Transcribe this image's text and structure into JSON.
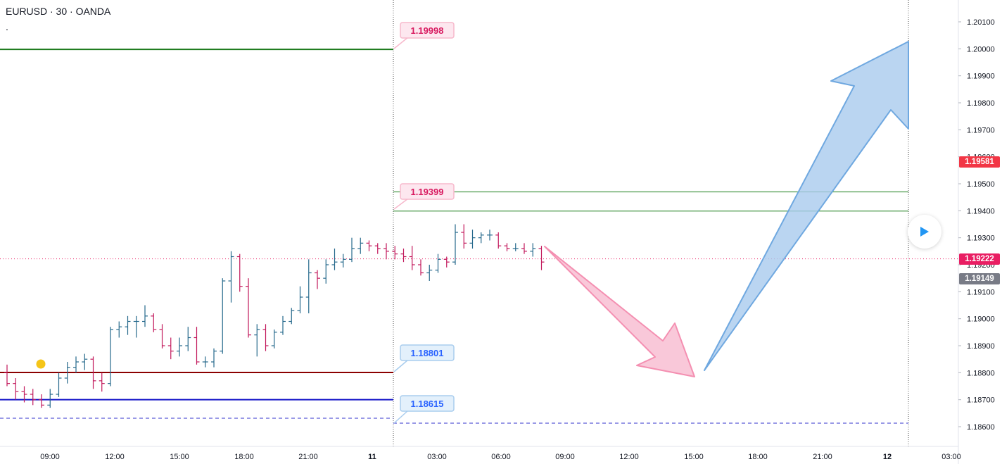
{
  "header": {
    "symbol_line": "EURUSD · 30 · OANDA",
    "sub_line": "."
  },
  "price_axis": {
    "ticks": [
      "1.20100",
      "1.20000",
      "1.19900",
      "1.19800",
      "1.19700",
      "1.19600",
      "1.19500",
      "1.19400",
      "1.19300",
      "1.19200",
      "1.19100",
      "1.19000",
      "1.18900",
      "1.18800",
      "1.18700",
      "1.18600"
    ],
    "labels": [
      {
        "name": "price-label-red",
        "text": "1.19581",
        "price": 1.19581,
        "bg": "#f23645",
        "fg": "#ffffff"
      },
      {
        "name": "price-label-pink",
        "text": "1.19222",
        "price": 1.19222,
        "bg": "#e91e63",
        "fg": "#ffffff"
      },
      {
        "name": "price-label-gray",
        "text": "1.19149",
        "price": 1.19149,
        "bg": "#787b86",
        "fg": "#ffffff"
      }
    ]
  },
  "time_axis": {
    "ticks": [
      "09:00",
      "12:00",
      "15:00",
      "18:00",
      "21:00",
      "11",
      "03:00",
      "06:00",
      "09:00",
      "12:00",
      "15:00",
      "18:00",
      "21:00",
      "12",
      "03:00"
    ]
  },
  "callouts": [
    {
      "text": "1.19998",
      "price": 1.19998,
      "color": "#d81b60",
      "bg": "#fde7ef",
      "border": "#f7b8cc"
    },
    {
      "text": "1.19399",
      "price": 1.19399,
      "color": "#d81b60",
      "bg": "#fde7ef",
      "border": "#f7b8cc"
    },
    {
      "text": "1.18801",
      "price": 1.18801,
      "color": "#2962ff",
      "bg": "#e3f0fb",
      "border": "#a9cdee"
    },
    {
      "text": "1.18615",
      "price": 1.18615,
      "color": "#2962ff",
      "bg": "#e3f0fb",
      "border": "#a9cdee"
    }
  ],
  "horizontal_lines": [
    {
      "name": "resistance-line-1.19998",
      "price": 1.19998,
      "color": "#1b7a1b"
    },
    {
      "name": "zone-line-upper",
      "price": 1.1947,
      "color": "#4c9a4c"
    },
    {
      "name": "zone-line-lower",
      "price": 1.19399,
      "color": "#4c9a4c"
    },
    {
      "name": "support-line-1.18801",
      "price": 1.18801,
      "color": "#8b0000"
    },
    {
      "name": "support-line-1.18700",
      "price": 1.187,
      "color": "#1414c8"
    },
    {
      "name": "dashed-line-1.18615",
      "price": 1.18615,
      "color": "#5c5cd6"
    }
  ],
  "current_price": 1.19222,
  "arrows": [
    {
      "name": "bearish-arrow",
      "fill": "#f7b6cc",
      "stroke": "#f48fb1"
    },
    {
      "name": "bullish-arrow",
      "fill": "#a9cbee",
      "stroke": "#6fa8e0"
    }
  ],
  "chart_data": {
    "type": "ohlc",
    "title": "EURUSD · 30 · OANDA",
    "ylim": [
      1.1855,
      1.2015
    ],
    "up_color": "#26698c",
    "down_color": "#c2185b",
    "bars": [
      [
        1.188,
        1.1883,
        1.1875,
        1.1876
      ],
      [
        1.1876,
        1.1878,
        1.187,
        1.1873
      ],
      [
        1.1873,
        1.1875,
        1.1869,
        1.1872
      ],
      [
        1.1872,
        1.1874,
        1.1868,
        1.187
      ],
      [
        1.187,
        1.1872,
        1.1867,
        1.1868
      ],
      [
        1.1868,
        1.1874,
        1.1867,
        1.1872
      ],
      [
        1.1872,
        1.188,
        1.1871,
        1.1878
      ],
      [
        1.1878,
        1.1884,
        1.1876,
        1.1882
      ],
      [
        1.1882,
        1.1886,
        1.188,
        1.1884
      ],
      [
        1.1884,
        1.1887,
        1.1881,
        1.1885
      ],
      [
        1.1885,
        1.1886,
        1.1874,
        1.1877
      ],
      [
        1.1877,
        1.188,
        1.1873,
        1.1876
      ],
      [
        1.1876,
        1.1897,
        1.1875,
        1.1896
      ],
      [
        1.1896,
        1.1899,
        1.1893,
        1.1897
      ],
      [
        1.1897,
        1.1901,
        1.1894,
        1.1899
      ],
      [
        1.1899,
        1.1901,
        1.1893,
        1.1899
      ],
      [
        1.1899,
        1.1905,
        1.1897,
        1.1901
      ],
      [
        1.1901,
        1.1902,
        1.1895,
        1.1896
      ],
      [
        1.1896,
        1.1898,
        1.1889,
        1.189
      ],
      [
        1.189,
        1.1893,
        1.1885,
        1.1888
      ],
      [
        1.1888,
        1.1893,
        1.1886,
        1.189
      ],
      [
        1.189,
        1.1897,
        1.1888,
        1.1893
      ],
      [
        1.1893,
        1.1897,
        1.1883,
        1.1884
      ],
      [
        1.1884,
        1.1886,
        1.1882,
        1.1884
      ],
      [
        1.1884,
        1.1889,
        1.1882,
        1.1888
      ],
      [
        1.1888,
        1.1915,
        1.1887,
        1.1914
      ],
      [
        1.1914,
        1.1925,
        1.1906,
        1.1923
      ],
      [
        1.1923,
        1.1924,
        1.191,
        1.1912
      ],
      [
        1.1912,
        1.1915,
        1.1893,
        1.1894
      ],
      [
        1.1894,
        1.1898,
        1.1886,
        1.1896
      ],
      [
        1.1896,
        1.1898,
        1.1888,
        1.189
      ],
      [
        1.189,
        1.1896,
        1.1889,
        1.1895
      ],
      [
        1.1895,
        1.1901,
        1.1894,
        1.1899
      ],
      [
        1.1899,
        1.1904,
        1.1898,
        1.1903
      ],
      [
        1.1903,
        1.1912,
        1.1902,
        1.1908
      ],
      [
        1.1908,
        1.1922,
        1.1902,
        1.1917
      ],
      [
        1.1917,
        1.1918,
        1.1911,
        1.1915
      ],
      [
        1.1915,
        1.1922,
        1.1913,
        1.192
      ],
      [
        1.192,
        1.1926,
        1.1918,
        1.1921
      ],
      [
        1.1921,
        1.1924,
        1.1919,
        1.1922
      ],
      [
        1.1922,
        1.193,
        1.1921,
        1.1926
      ],
      [
        1.1926,
        1.193,
        1.1924,
        1.1928
      ],
      [
        1.1928,
        1.1929,
        1.1925,
        1.1927
      ],
      [
        1.1927,
        1.1928,
        1.1924,
        1.1926
      ],
      [
        1.1926,
        1.1928,
        1.1922,
        1.1925
      ],
      [
        1.1925,
        1.1927,
        1.1922,
        1.1924
      ],
      [
        1.1924,
        1.1926,
        1.1921,
        1.1923
      ],
      [
        1.1923,
        1.1927,
        1.1918,
        1.192
      ],
      [
        1.192,
        1.1922,
        1.1916,
        1.1917
      ],
      [
        1.1917,
        1.192,
        1.1914,
        1.1918
      ],
      [
        1.1918,
        1.1924,
        1.1917,
        1.1922
      ],
      [
        1.1922,
        1.1923,
        1.1919,
        1.1921
      ],
      [
        1.1921,
        1.1935,
        1.192,
        1.1932
      ],
      [
        1.1932,
        1.1935,
        1.1926,
        1.1928
      ],
      [
        1.1928,
        1.1933,
        1.1926,
        1.193
      ],
      [
        1.193,
        1.1932,
        1.1928,
        1.1931
      ],
      [
        1.1931,
        1.1933,
        1.1929,
        1.1931
      ],
      [
        1.1931,
        1.1932,
        1.1926,
        1.1927
      ],
      [
        1.1927,
        1.1928,
        1.1925,
        1.1926
      ],
      [
        1.1926,
        1.1928,
        1.1925,
        1.1926
      ],
      [
        1.1926,
        1.1928,
        1.1924,
        1.1925
      ],
      [
        1.1925,
        1.1928,
        1.1923,
        1.1926
      ],
      [
        1.1926,
        1.1927,
        1.1918,
        1.1921
      ]
    ]
  }
}
